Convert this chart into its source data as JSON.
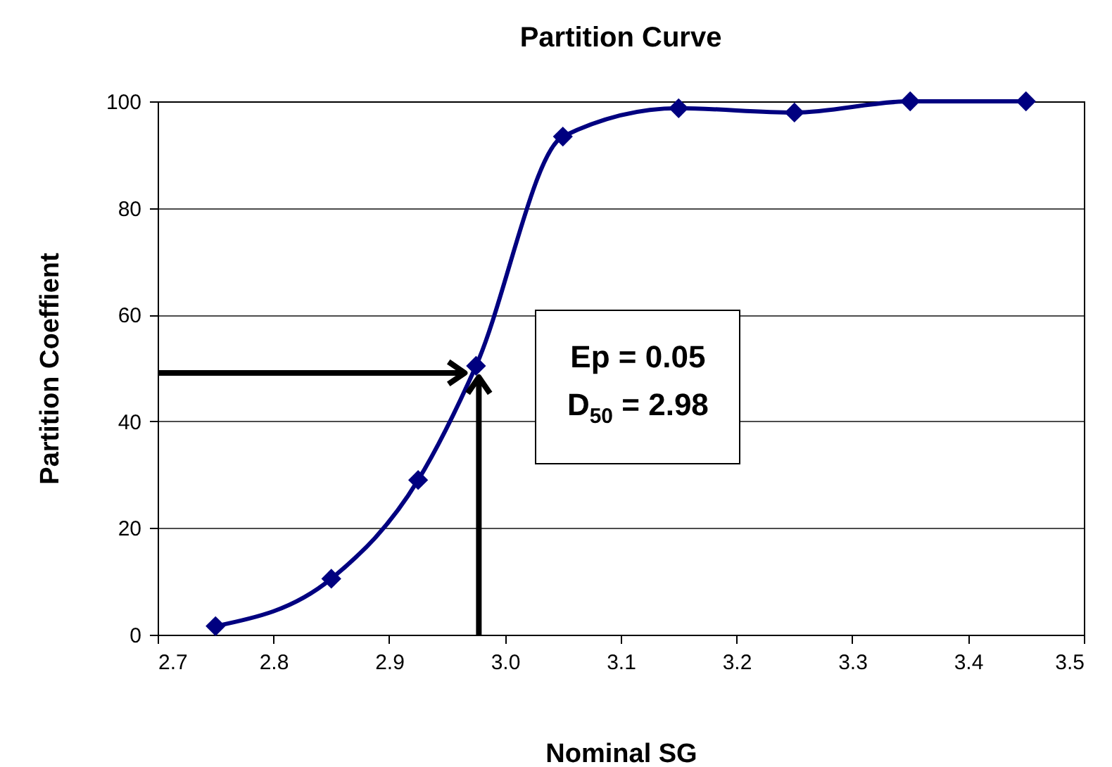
{
  "chart_data": {
    "type": "line",
    "title": "Partition Curve",
    "xlabel": "Nominal SG",
    "ylabel": "Partition Coeffient",
    "x": [
      2.75,
      2.85,
      2.925,
      2.975,
      3.05,
      3.15,
      3.25,
      3.35,
      3.45
    ],
    "series": [
      {
        "color": "#000080",
        "values": [
          1.6,
          10.5,
          29,
          50.4,
          93.4,
          98.7,
          97.9,
          100,
          100
        ]
      }
    ],
    "xlim": [
      2.7,
      3.5
    ],
    "xticks": [
      2.7,
      2.8,
      2.9,
      {
        "value": 3,
        "label": "3.0"
      },
      3.1,
      3.2,
      3.3,
      3.4,
      3.5
    ],
    "ylim": [
      0,
      100
    ],
    "yticks": [
      0,
      20,
      40,
      60,
      80,
      100
    ],
    "annotations": [
      "Ep = 0.05",
      "D$_{50}$ = 2.98"
    ],
    "grid": "y",
    "marker": "diamond",
    "line_style": "solid"
  }
}
